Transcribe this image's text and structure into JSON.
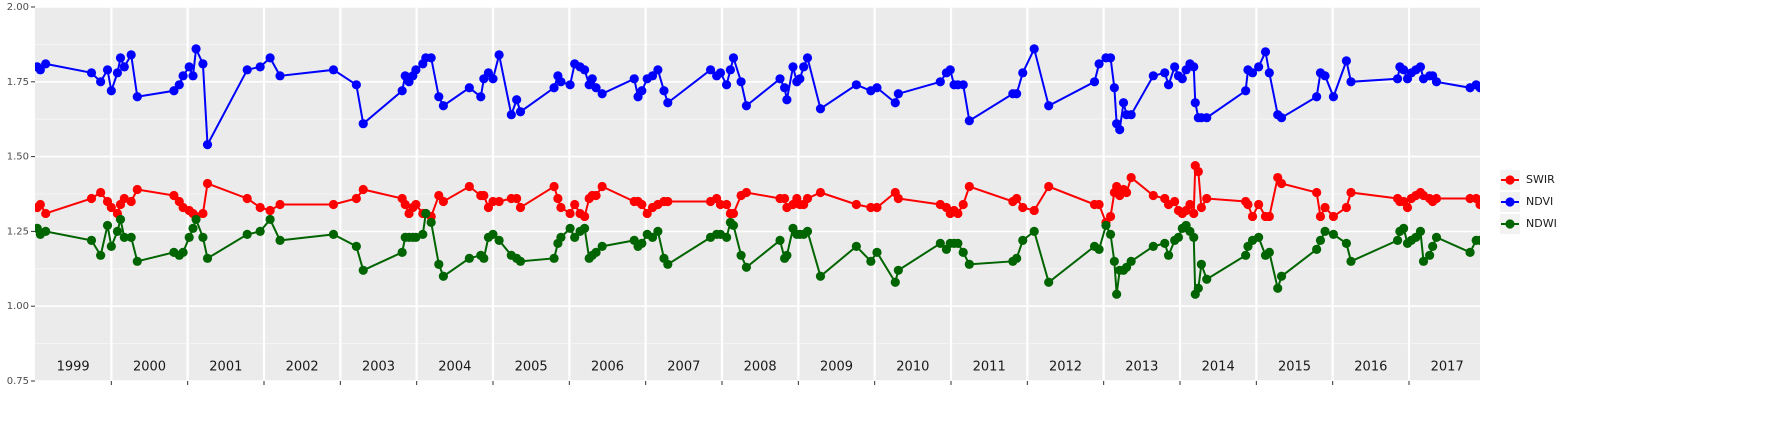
{
  "chart_data": {
    "type": "line",
    "xlim": [
      1999,
      2017.93
    ],
    "xticks": [
      2000,
      2001,
      2002,
      2003,
      2004,
      2005,
      2006,
      2007,
      2008,
      2009,
      2010,
      2011,
      2012,
      2013,
      2014,
      2015,
      2016,
      2017
    ],
    "year_labels": [
      "1999",
      "2000",
      "2001",
      "2002",
      "2003",
      "2004",
      "2005",
      "2006",
      "2007",
      "2008",
      "2009",
      "2010",
      "2011",
      "2012",
      "2013",
      "2014",
      "2015",
      "2016",
      "2017"
    ],
    "ylim": [
      0.75,
      2.0
    ],
    "yticks": [
      {
        "value": 0.75,
        "label": "0.75"
      },
      {
        "value": 1.0,
        "label": "1.00"
      },
      {
        "value": 1.25,
        "label": "1.25"
      },
      {
        "value": 1.5,
        "label": "1.50"
      },
      {
        "value": 1.75,
        "label": "1.75"
      },
      {
        "value": 2.0,
        "label": "2.00"
      }
    ],
    "grid": true,
    "legend": "right",
    "x": [
      1999.03,
      1999.07,
      1999.14,
      1999.74,
      1999.86,
      1999.95,
      2000.0,
      2000.08,
      2000.12,
      2000.17,
      2000.26,
      2000.34,
      2000.82,
      2000.89,
      2000.94,
      2001.02,
      2001.07,
      2001.11,
      2001.2,
      2001.26,
      2001.78,
      2001.95,
      2002.08,
      2002.21,
      2002.91,
      2003.21,
      2003.3,
      2003.81,
      2003.85,
      2003.9,
      2003.95,
      2003.99,
      2004.08,
      2004.12,
      2004.19,
      2004.29,
      2004.35,
      2004.69,
      2004.84,
      2004.88,
      2004.94,
      2005.0,
      2005.08,
      2005.24,
      2005.31,
      2005.36,
      2005.8,
      2005.85,
      2005.89,
      2006.01,
      2006.07,
      2006.14,
      2006.2,
      2006.26,
      2006.3,
      2006.35,
      2006.43,
      2006.85,
      2006.9,
      2006.95,
      2007.02,
      2007.09,
      2007.16,
      2007.24,
      2007.29,
      2007.85,
      2007.93,
      2007.98,
      2008.06,
      2008.11,
      2008.15,
      2008.25,
      2008.32,
      2008.76,
      2008.82,
      2008.85,
      2008.93,
      2008.98,
      2009.02,
      2009.07,
      2009.12,
      2009.29,
      2009.76,
      2009.95,
      2010.03,
      2010.27,
      2010.31,
      2010.86,
      2010.94,
      2010.99,
      2011.04,
      2011.09,
      2011.16,
      2011.24,
      2011.81,
      2011.86,
      2011.94,
      2012.09,
      2012.28,
      2012.88,
      2012.94,
      2013.03,
      2013.09,
      2013.14,
      2013.17,
      2013.21,
      2013.26,
      2013.3,
      2013.36,
      2013.65,
      2013.8,
      2013.85,
      2013.93,
      2013.98,
      2014.03,
      2014.08,
      2014.13,
      2014.18,
      2014.2,
      2014.24,
      2014.28,
      2014.35,
      2014.86,
      2014.89,
      2014.95,
      2015.03,
      2015.12,
      2015.17,
      2015.28,
      2015.33,
      2015.79,
      2015.84,
      2015.9,
      2016.01,
      2016.18,
      2016.24,
      2016.85,
      2016.88,
      2016.93,
      2016.98,
      2017.03,
      2017.09,
      2017.15,
      2017.19,
      2017.27,
      2017.31,
      2017.36,
      2017.8,
      2017.88,
      2017.93
    ],
    "series": [
      {
        "name": "SWIR",
        "color": "#ff0000",
        "values": [
          1.33,
          1.34,
          1.31,
          1.36,
          1.38,
          1.35,
          1.33,
          1.31,
          1.34,
          1.36,
          1.35,
          1.39,
          1.37,
          1.35,
          1.33,
          1.32,
          1.31,
          1.3,
          1.31,
          1.41,
          1.36,
          1.33,
          1.32,
          1.34,
          1.34,
          1.36,
          1.39,
          1.36,
          1.34,
          1.31,
          1.33,
          1.34,
          1.31,
          1.31,
          1.3,
          1.37,
          1.35,
          1.4,
          1.37,
          1.37,
          1.33,
          1.35,
          1.35,
          1.36,
          1.36,
          1.33,
          1.4,
          1.36,
          1.33,
          1.31,
          1.34,
          1.31,
          1.3,
          1.36,
          1.37,
          1.37,
          1.4,
          1.35,
          1.35,
          1.34,
          1.31,
          1.33,
          1.34,
          1.35,
          1.35,
          1.35,
          1.36,
          1.34,
          1.34,
          1.31,
          1.31,
          1.37,
          1.38,
          1.36,
          1.36,
          1.33,
          1.34,
          1.36,
          1.34,
          1.34,
          1.36,
          1.38,
          1.34,
          1.33,
          1.33,
          1.38,
          1.36,
          1.34,
          1.33,
          1.31,
          1.32,
          1.31,
          1.34,
          1.4,
          1.35,
          1.36,
          1.33,
          1.32,
          1.4,
          1.34,
          1.34,
          1.28,
          1.3,
          1.38,
          1.4,
          1.37,
          1.39,
          1.38,
          1.43,
          1.37,
          1.36,
          1.34,
          1.35,
          1.32,
          1.31,
          1.32,
          1.34,
          1.31,
          1.47,
          1.45,
          1.33,
          1.36,
          1.35,
          1.34,
          1.3,
          1.34,
          1.3,
          1.3,
          1.43,
          1.41,
          1.38,
          1.3,
          1.33,
          1.3,
          1.33,
          1.38,
          1.36,
          1.35,
          1.35,
          1.33,
          1.36,
          1.37,
          1.38,
          1.37,
          1.36,
          1.35,
          1.36,
          1.36,
          1.36,
          1.34
        ]
      },
      {
        "name": "NDVI",
        "color": "#0000ff",
        "values": [
          1.8,
          1.79,
          1.81,
          1.78,
          1.75,
          1.79,
          1.72,
          1.78,
          1.83,
          1.8,
          1.84,
          1.7,
          1.72,
          1.74,
          1.77,
          1.8,
          1.77,
          1.86,
          1.81,
          1.54,
          1.79,
          1.8,
          1.83,
          1.77,
          1.79,
          1.74,
          1.61,
          1.72,
          1.77,
          1.75,
          1.77,
          1.79,
          1.81,
          1.83,
          1.83,
          1.7,
          1.67,
          1.73,
          1.7,
          1.76,
          1.78,
          1.76,
          1.84,
          1.64,
          1.69,
          1.65,
          1.73,
          1.77,
          1.75,
          1.74,
          1.81,
          1.8,
          1.79,
          1.74,
          1.76,
          1.73,
          1.71,
          1.76,
          1.7,
          1.72,
          1.76,
          1.77,
          1.79,
          1.72,
          1.68,
          1.79,
          1.77,
          1.78,
          1.74,
          1.79,
          1.83,
          1.75,
          1.67,
          1.76,
          1.73,
          1.69,
          1.8,
          1.75,
          1.76,
          1.8,
          1.83,
          1.66,
          1.74,
          1.72,
          1.73,
          1.68,
          1.71,
          1.75,
          1.78,
          1.79,
          1.74,
          1.74,
          1.74,
          1.62,
          1.71,
          1.71,
          1.78,
          1.86,
          1.67,
          1.75,
          1.81,
          1.83,
          1.83,
          1.73,
          1.61,
          1.59,
          1.68,
          1.64,
          1.64,
          1.77,
          1.78,
          1.74,
          1.8,
          1.77,
          1.76,
          1.79,
          1.81,
          1.8,
          1.68,
          1.63,
          1.63,
          1.63,
          1.72,
          1.79,
          1.78,
          1.8,
          1.85,
          1.78,
          1.64,
          1.63,
          1.7,
          1.78,
          1.77,
          1.7,
          1.82,
          1.75,
          1.76,
          1.8,
          1.79,
          1.76,
          1.78,
          1.79,
          1.8,
          1.76,
          1.77,
          1.77,
          1.75,
          1.73,
          1.74,
          1.73
        ]
      },
      {
        "name": "NDWI",
        "color": "#006400",
        "values": [
          1.26,
          1.24,
          1.25,
          1.22,
          1.17,
          1.27,
          1.2,
          1.25,
          1.29,
          1.23,
          1.23,
          1.15,
          1.18,
          1.17,
          1.18,
          1.23,
          1.26,
          1.29,
          1.23,
          1.16,
          1.24,
          1.25,
          1.29,
          1.22,
          1.24,
          1.2,
          1.12,
          1.18,
          1.23,
          1.23,
          1.23,
          1.23,
          1.24,
          1.31,
          1.28,
          1.14,
          1.1,
          1.16,
          1.17,
          1.16,
          1.23,
          1.24,
          1.22,
          1.17,
          1.16,
          1.15,
          1.16,
          1.21,
          1.23,
          1.26,
          1.23,
          1.25,
          1.26,
          1.16,
          1.17,
          1.18,
          1.2,
          1.22,
          1.2,
          1.21,
          1.24,
          1.23,
          1.25,
          1.16,
          1.14,
          1.23,
          1.24,
          1.24,
          1.23,
          1.28,
          1.27,
          1.17,
          1.13,
          1.22,
          1.16,
          1.17,
          1.26,
          1.24,
          1.24,
          1.24,
          1.25,
          1.1,
          1.2,
          1.15,
          1.18,
          1.08,
          1.12,
          1.21,
          1.19,
          1.21,
          1.21,
          1.21,
          1.18,
          1.14,
          1.15,
          1.16,
          1.22,
          1.25,
          1.08,
          1.2,
          1.19,
          1.27,
          1.24,
          1.15,
          1.04,
          1.12,
          1.12,
          1.13,
          1.15,
          1.2,
          1.21,
          1.17,
          1.22,
          1.23,
          1.26,
          1.27,
          1.25,
          1.23,
          1.04,
          1.06,
          1.14,
          1.09,
          1.17,
          1.2,
          1.22,
          1.23,
          1.17,
          1.18,
          1.06,
          1.1,
          1.19,
          1.22,
          1.25,
          1.24,
          1.21,
          1.15,
          1.22,
          1.25,
          1.26,
          1.21,
          1.22,
          1.23,
          1.25,
          1.15,
          1.17,
          1.2,
          1.23,
          1.18,
          1.22,
          1.22
        ]
      }
    ]
  }
}
